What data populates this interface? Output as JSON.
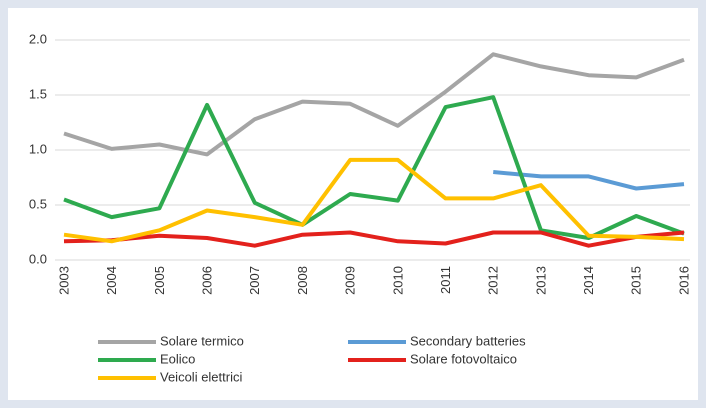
{
  "chart_data": {
    "type": "line",
    "categories": [
      "2003",
      "2004",
      "2005",
      "2006",
      "2007",
      "2008",
      "2009",
      "2010",
      "2011",
      "2012",
      "2013",
      "2014",
      "2015",
      "2016"
    ],
    "series": [
      {
        "name": "Solare termico",
        "color": "#a5a5a5",
        "values": [
          1.15,
          1.01,
          1.05,
          0.96,
          1.28,
          1.44,
          1.42,
          1.22,
          1.53,
          1.87,
          1.76,
          1.68,
          1.66,
          1.82
        ]
      },
      {
        "name": "Secondary batteries",
        "color": "#5b9bd5",
        "values": [
          null,
          null,
          null,
          null,
          null,
          null,
          null,
          null,
          null,
          0.8,
          0.76,
          0.76,
          0.65,
          0.69
        ]
      },
      {
        "name": "Eolico",
        "color": "#2eaa4f",
        "values": [
          0.55,
          0.39,
          0.47,
          1.41,
          0.52,
          0.32,
          0.6,
          0.54,
          1.39,
          1.48,
          0.27,
          0.2,
          0.4,
          0.24
        ]
      },
      {
        "name": "Solare fotovoltaico",
        "color": "#e3211c",
        "values": [
          0.17,
          0.18,
          0.22,
          0.2,
          0.13,
          0.23,
          0.25,
          0.17,
          0.15,
          0.25,
          0.25,
          0.13,
          0.21,
          0.25
        ]
      },
      {
        "name": "Veicoli elettrici",
        "color": "#ffc000",
        "values": [
          0.23,
          0.17,
          0.27,
          0.45,
          0.39,
          0.32,
          0.91,
          0.91,
          0.56,
          0.56,
          0.68,
          0.22,
          0.21,
          0.19
        ]
      }
    ],
    "ylim": [
      0,
      2
    ],
    "yticks": [
      {
        "value": 0,
        "label": "0.0"
      },
      0.5,
      {
        "value": 1,
        "label": "1.0"
      },
      1.5,
      {
        "value": 2,
        "label": "2.0"
      }
    ],
    "grid": true
  }
}
